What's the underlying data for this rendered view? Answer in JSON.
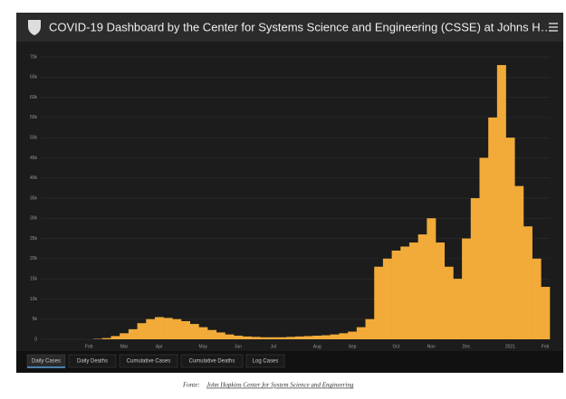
{
  "header": {
    "title": "COVID-19 Dashboard by the Center for Systems Science and Engineering (CSSE) at Johns H…"
  },
  "chart_data": {
    "type": "bar",
    "color": "#f2ab39",
    "categories": [
      null,
      null,
      null,
      null,
      null,
      "Feb",
      null,
      null,
      null,
      "Mar",
      null,
      null,
      null,
      "Apr",
      null,
      null,
      null,
      null,
      "May",
      null,
      null,
      null,
      "Jun",
      null,
      null,
      null,
      "Jul",
      null,
      null,
      null,
      null,
      "Aug",
      null,
      null,
      null,
      "Sep",
      null,
      null,
      null,
      null,
      "Oct",
      null,
      null,
      null,
      "Nov",
      null,
      null,
      null,
      "Dec",
      null,
      null,
      null,
      null,
      "2021",
      null,
      null,
      null,
      "Feb"
    ],
    "values": [
      0,
      0,
      0,
      0,
      0,
      0,
      100,
      300,
      800,
      1500,
      2500,
      4000,
      5000,
      5500,
      5300,
      5000,
      4500,
      3800,
      3000,
      2300,
      1700,
      1200,
      900,
      700,
      600,
      500,
      500,
      500,
      600,
      700,
      800,
      900,
      1000,
      1200,
      1500,
      1900,
      3000,
      5000,
      18000,
      20000,
      22000,
      23000,
      24000,
      26000,
      30000,
      24000,
      18000,
      15000,
      25000,
      35000,
      45000,
      55000,
      68000,
      50000,
      38000,
      28000,
      20000,
      13000
    ],
    "ylim": [
      0,
      70000
    ],
    "yticks": [
      0,
      {
        "value": 5000,
        "label": "5k"
      },
      {
        "value": 10000,
        "label": "10k"
      },
      {
        "value": 15000,
        "label": "15k"
      },
      {
        "value": 20000,
        "label": "20k"
      },
      {
        "value": 25000,
        "label": "25k"
      },
      {
        "value": 30000,
        "label": "30k"
      },
      {
        "value": 35000,
        "label": "35k"
      },
      {
        "value": 40000,
        "label": "40k"
      },
      {
        "value": 45000,
        "label": "45k"
      },
      {
        "value": 50000,
        "label": "50k"
      },
      {
        "value": 55000,
        "label": "55k"
      },
      {
        "value": 60000,
        "label": "60k"
      },
      {
        "value": 65000,
        "label": "65k"
      },
      {
        "value": 70000,
        "label": "70k"
      }
    ],
    "grid": true
  },
  "tabs": [
    "Daily Cases",
    "Daily Deaths",
    "Cumulative Cases",
    "Cumulative Deaths",
    "Log Cases"
  ],
  "footer": {
    "prefix": "Fonte:",
    "link": "John Hopkins Center for System Science and Engineering"
  }
}
